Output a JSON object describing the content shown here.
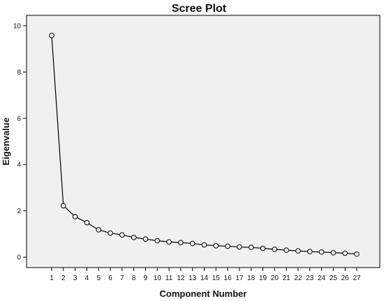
{
  "chart_data": {
    "type": "line",
    "title": "Scree Plot",
    "xlabel": "Component Number",
    "ylabel": "Eigenvalue",
    "x": [
      1,
      2,
      3,
      4,
      5,
      6,
      7,
      8,
      9,
      10,
      11,
      12,
      13,
      14,
      15,
      16,
      17,
      18,
      19,
      20,
      21,
      22,
      23,
      24,
      25,
      26,
      27
    ],
    "y": [
      9.58,
      2.22,
      1.75,
      1.49,
      1.18,
      1.04,
      0.96,
      0.85,
      0.78,
      0.71,
      0.66,
      0.63,
      0.59,
      0.53,
      0.49,
      0.47,
      0.44,
      0.42,
      0.38,
      0.34,
      0.3,
      0.27,
      0.24,
      0.22,
      0.19,
      0.17,
      0.13
    ],
    "ylim": [
      -0.45,
      10.45
    ],
    "yticks": [
      0,
      2,
      4,
      6,
      8,
      10
    ],
    "xticks": [
      1,
      2,
      3,
      4,
      5,
      6,
      7,
      8,
      9,
      10,
      11,
      12,
      13,
      14,
      15,
      16,
      17,
      18,
      19,
      20,
      21,
      22,
      23,
      24,
      25,
      26,
      27
    ],
    "marker": "open-circle",
    "grid": false,
    "colors": {
      "plot_background": "#f0f0f0",
      "line": "#000000",
      "frame": "#000000"
    }
  }
}
